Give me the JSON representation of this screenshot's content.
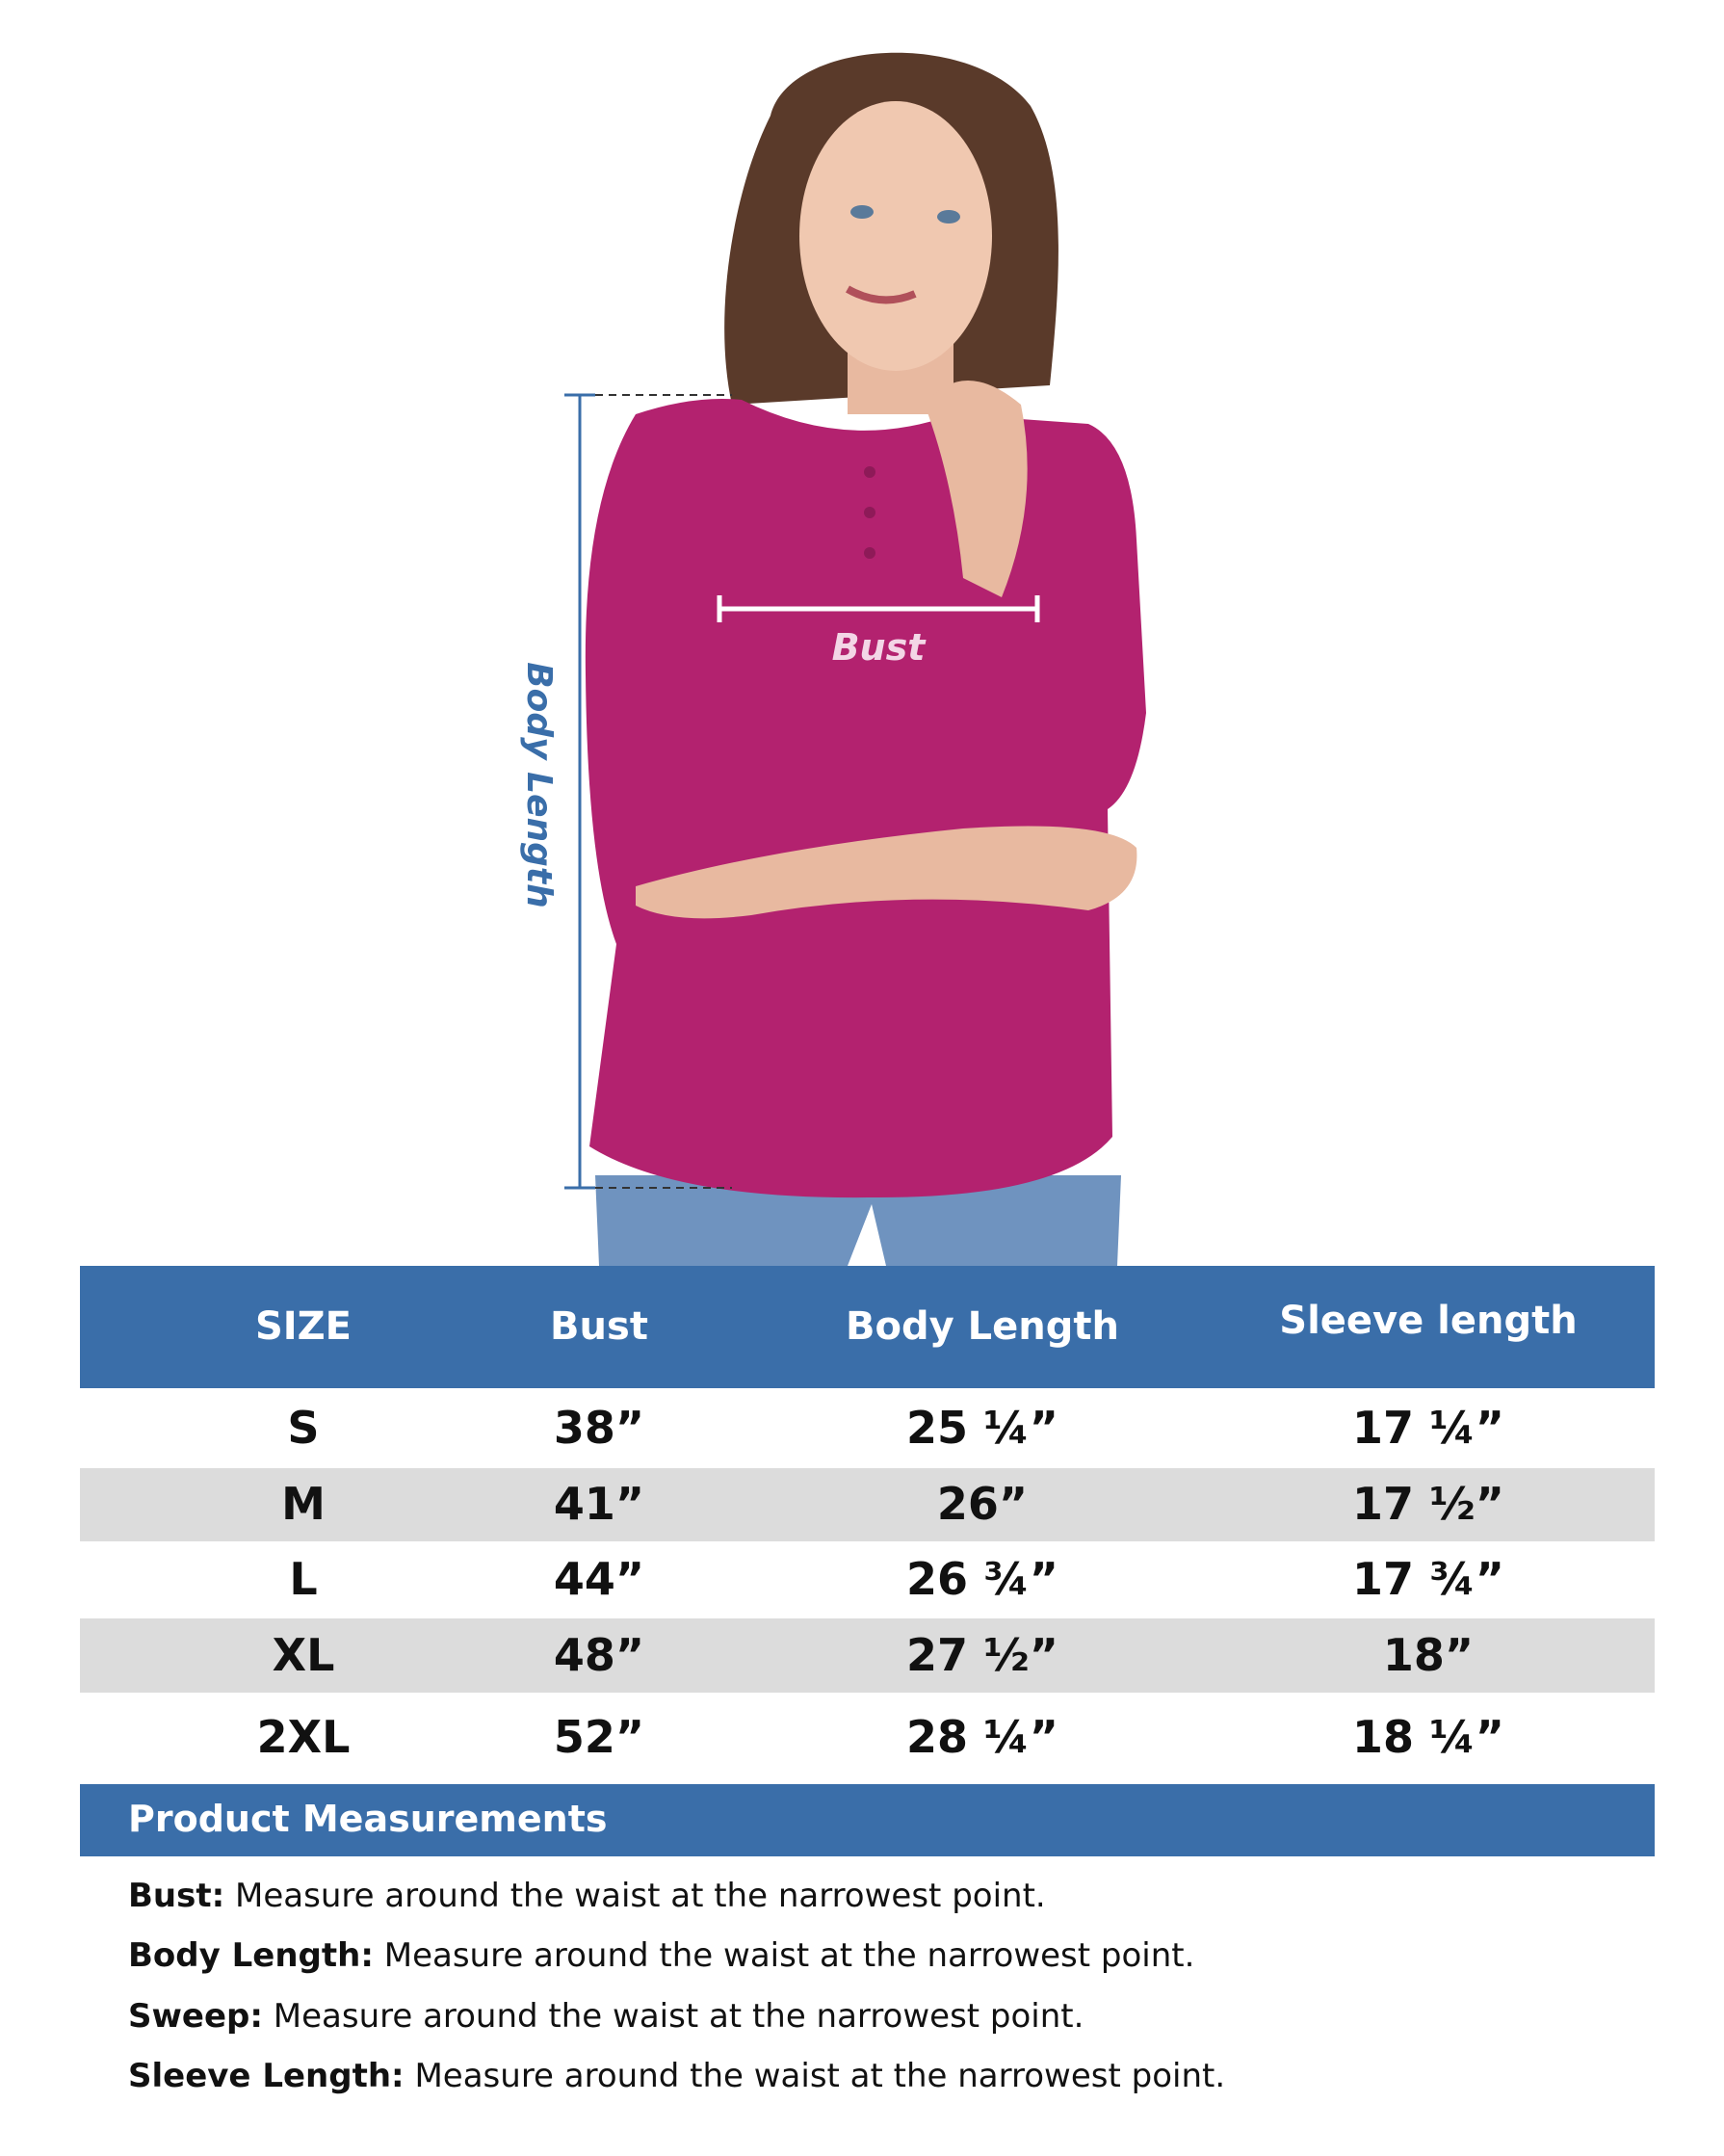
{
  "figure": {
    "bust_label": "Bust",
    "body_length_label": "Body Length",
    "shirt_color": "#b3226f",
    "measure_line_color": "#3a6ea9"
  },
  "table": {
    "header_color": "#3a6ea9",
    "columns": [
      "SIZE",
      "Bust",
      "Body Length",
      "Sleeve length"
    ],
    "rows": [
      [
        "S",
        "38”",
        "25 ¼”",
        "17 ¼”"
      ],
      [
        "M",
        "41”",
        "26”",
        "17 ½”"
      ],
      [
        "L",
        "44”",
        "26 ¾”",
        "17 ¾”"
      ],
      [
        "XL",
        "48”",
        "27 ½”",
        "18”"
      ],
      [
        "2XL",
        "52”",
        "28 ¼”",
        "18 ¼”"
      ]
    ]
  },
  "measurements": {
    "title": "Product Measurements",
    "items": [
      {
        "term": "Bust:",
        "text": " Measure around the waist at the narrowest point."
      },
      {
        "term": "Body Length:",
        "text": " Measure around the waist at the narrowest point."
      },
      {
        "term": "Sweep:",
        "text": " Measure around the waist at the narrowest point."
      },
      {
        "term": "Sleeve Length:",
        "text": " Measure around the waist at the narrowest point."
      }
    ]
  }
}
